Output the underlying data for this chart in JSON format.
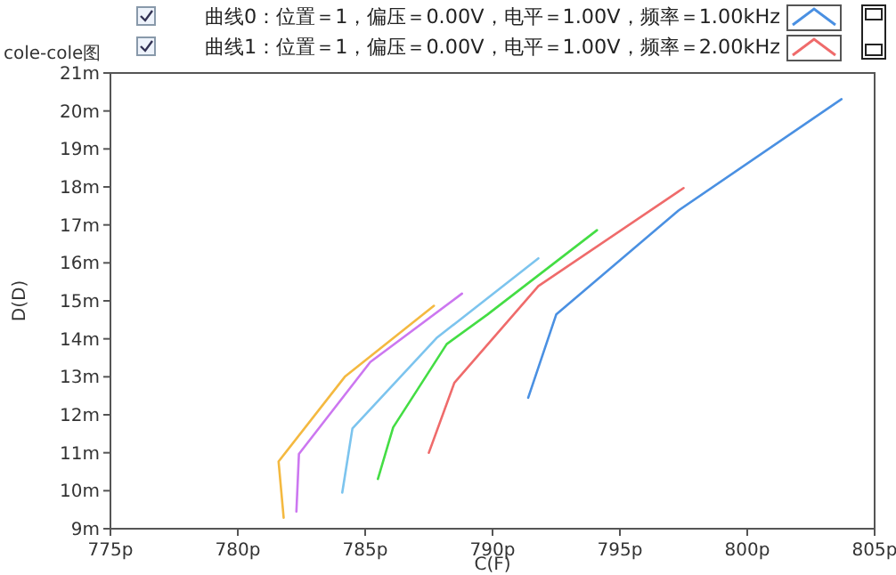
{
  "chart_data": {
    "type": "line",
    "title": "cole-cole图",
    "xlabel": "C(F)",
    "ylabel": "D(D)",
    "xlim": [
      775,
      805
    ],
    "ylim": [
      9,
      21
    ],
    "xticks": [
      {
        "value": 775,
        "label": "775p"
      },
      {
        "value": 780,
        "label": "780p"
      },
      {
        "value": 785,
        "label": "785p"
      },
      {
        "value": 790,
        "label": "790p"
      },
      {
        "value": 795,
        "label": "795p"
      },
      {
        "value": 800,
        "label": "800p"
      },
      {
        "value": 805,
        "label": "805p"
      }
    ],
    "yticks": [
      {
        "value": 9,
        "label": "9m"
      },
      {
        "value": 10,
        "label": "10m"
      },
      {
        "value": 11,
        "label": "11m"
      },
      {
        "value": 12,
        "label": "12m"
      },
      {
        "value": 13,
        "label": "13m"
      },
      {
        "value": 14,
        "label": "14m"
      },
      {
        "value": 15,
        "label": "15m"
      },
      {
        "value": 16,
        "label": "16m"
      },
      {
        "value": 17,
        "label": "17m"
      },
      {
        "value": 18,
        "label": "18m"
      },
      {
        "value": 19,
        "label": "19m"
      },
      {
        "value": 20,
        "label": "20m"
      },
      {
        "value": 21,
        "label": "21m"
      }
    ],
    "legend": "top",
    "grid": false,
    "marker": "none",
    "line_style": "solid",
    "series": [
      {
        "name": "曲线0：位置＝1，偏压＝0.00V，电平＝1.00V，频率＝1.00kHz",
        "color": "#4a90e2",
        "x": [
          791.4,
          792.5,
          797.3,
          803.7
        ],
        "values": [
          12.45,
          14.64,
          17.38,
          20.31
        ]
      },
      {
        "name": "曲线1：位置＝1，偏压＝0.00V，电平＝1.00V，频率＝2.00kHz",
        "color": "#ef6b6b",
        "x": [
          787.5,
          788.5,
          791.8,
          797.5
        ],
        "values": [
          11.0,
          12.84,
          15.39,
          17.97
        ]
      },
      {
        "color": "#44dd44",
        "x": [
          785.5,
          786.1,
          788.2,
          789.8,
          794.1
        ],
        "values": [
          10.31,
          11.67,
          13.86,
          14.64,
          16.86
        ]
      },
      {
        "color": "#7cc4ee",
        "x": [
          784.1,
          784.5,
          787.8,
          791.8
        ],
        "values": [
          9.95,
          11.64,
          14.02,
          16.12
        ]
      },
      {
        "color": "#cc77f0",
        "x": [
          782.3,
          782.4,
          785.2,
          788.8
        ],
        "values": [
          9.45,
          10.97,
          13.39,
          15.19
        ]
      },
      {
        "color": "#f4b940",
        "x": [
          781.8,
          781.6,
          784.2,
          787.7
        ],
        "values": [
          9.29,
          10.77,
          13.0,
          14.87
        ]
      }
    ]
  }
}
